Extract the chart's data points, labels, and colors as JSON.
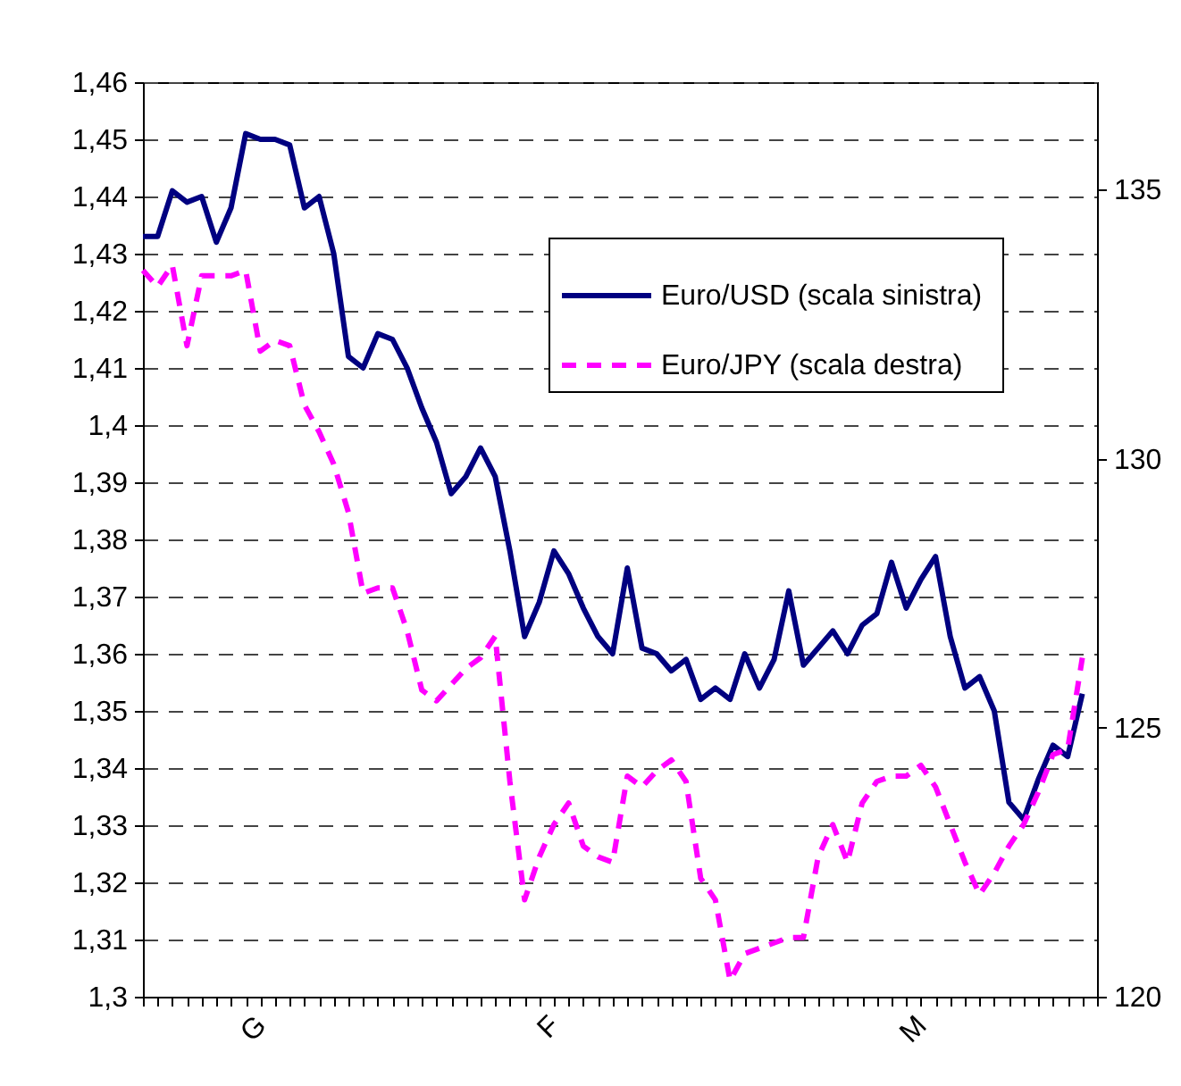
{
  "chart_data": {
    "type": "line",
    "categories": [
      null,
      null,
      null,
      null,
      null,
      null,
      null,
      null,
      "G",
      null,
      null,
      null,
      null,
      null,
      null,
      null,
      null,
      null,
      null,
      null,
      null,
      null,
      null,
      null,
      null,
      null,
      null,
      null,
      "F",
      null,
      null,
      null,
      null,
      null,
      null,
      null,
      null,
      null,
      null,
      null,
      null,
      null,
      null,
      null,
      null,
      null,
      null,
      null,
      null,
      null,
      null,
      null,
      null,
      "M",
      null,
      null,
      null,
      null,
      null,
      null,
      null,
      null,
      null,
      null,
      null,
      null
    ],
    "series": [
      {
        "name": "Euro/USD  (scala sinistra)",
        "color": "#000080",
        "line_style": "solid",
        "values": [
          1.433,
          1.433,
          1.441,
          1.439,
          1.44,
          1.432,
          1.438,
          1.451,
          1.45,
          1.45,
          1.449,
          1.438,
          1.44,
          1.43,
          1.412,
          1.41,
          1.416,
          1.415,
          1.41,
          1.403,
          1.397,
          1.388,
          1.391,
          1.396,
          1.391,
          1.378,
          1.363,
          1.369,
          1.378,
          1.374,
          1.368,
          1.363,
          1.36,
          1.375,
          1.361,
          1.36,
          1.357,
          1.359,
          1.352,
          1.354,
          1.352,
          1.36,
          1.354,
          1.359,
          1.371,
          1.358,
          1.361,
          1.364,
          1.36,
          1.365,
          1.367,
          1.376,
          1.368,
          1.373,
          1.377,
          1.363,
          1.354,
          1.356,
          1.35,
          1.334,
          1.331,
          1.338,
          1.344,
          1.342,
          1.353,
          null
        ]
      },
      {
        "name": "Euro/JPY   (scala destra)",
        "color": "#ff00ff",
        "line_style": "dashed",
        "axis": "y2",
        "values": [
          133.5,
          133.2,
          133.6,
          132.1,
          133.4,
          133.4,
          133.4,
          133.5,
          132.0,
          132.2,
          132.1,
          131.0,
          130.5,
          129.9,
          129.0,
          127.5,
          127.6,
          127.6,
          126.8,
          125.7,
          125.5,
          125.8,
          126.1,
          126.3,
          126.7,
          124.0,
          121.8,
          122.6,
          123.2,
          123.6,
          122.8,
          122.6,
          122.5,
          124.1,
          123.9,
          124.2,
          124.4,
          124.0,
          122.2,
          121.8,
          120.3,
          120.8,
          120.9,
          121.0,
          121.1,
          121.1,
          122.6,
          123.2,
          122.5,
          123.6,
          124.0,
          124.1,
          124.1,
          124.3,
          123.9,
          123.2,
          122.5,
          121.9,
          122.3,
          122.8,
          123.2,
          123.8,
          124.5,
          124.6,
          126.3,
          null
        ]
      }
    ],
    "ylim": [
      1.3,
      1.46
    ],
    "yticks": [
      {
        "value": 1.3,
        "label": "1,3"
      },
      {
        "value": 1.31,
        "label": "1,31"
      },
      {
        "value": 1.32,
        "label": "1,32"
      },
      {
        "value": 1.33,
        "label": "1,33"
      },
      {
        "value": 1.34,
        "label": "1,34"
      },
      {
        "value": 1.35,
        "label": "1,35"
      },
      {
        "value": 1.36,
        "label": "1,36"
      },
      {
        "value": 1.37,
        "label": "1,37"
      },
      {
        "value": 1.38,
        "label": "1,38"
      },
      {
        "value": 1.39,
        "label": "1,39"
      },
      {
        "value": 1.4,
        "label": "1,4"
      },
      {
        "value": 1.41,
        "label": "1,41"
      },
      {
        "value": 1.42,
        "label": "1,42"
      },
      {
        "value": 1.43,
        "label": "1,43"
      },
      {
        "value": 1.44,
        "label": "1,44"
      },
      {
        "value": 1.45,
        "label": "1,45"
      },
      {
        "value": 1.46,
        "label": "1,46"
      }
    ],
    "y2lim": [
      120,
      137
    ],
    "y2ticks": [
      120,
      125,
      130,
      135
    ],
    "grid": "y",
    "legend": "top right"
  }
}
